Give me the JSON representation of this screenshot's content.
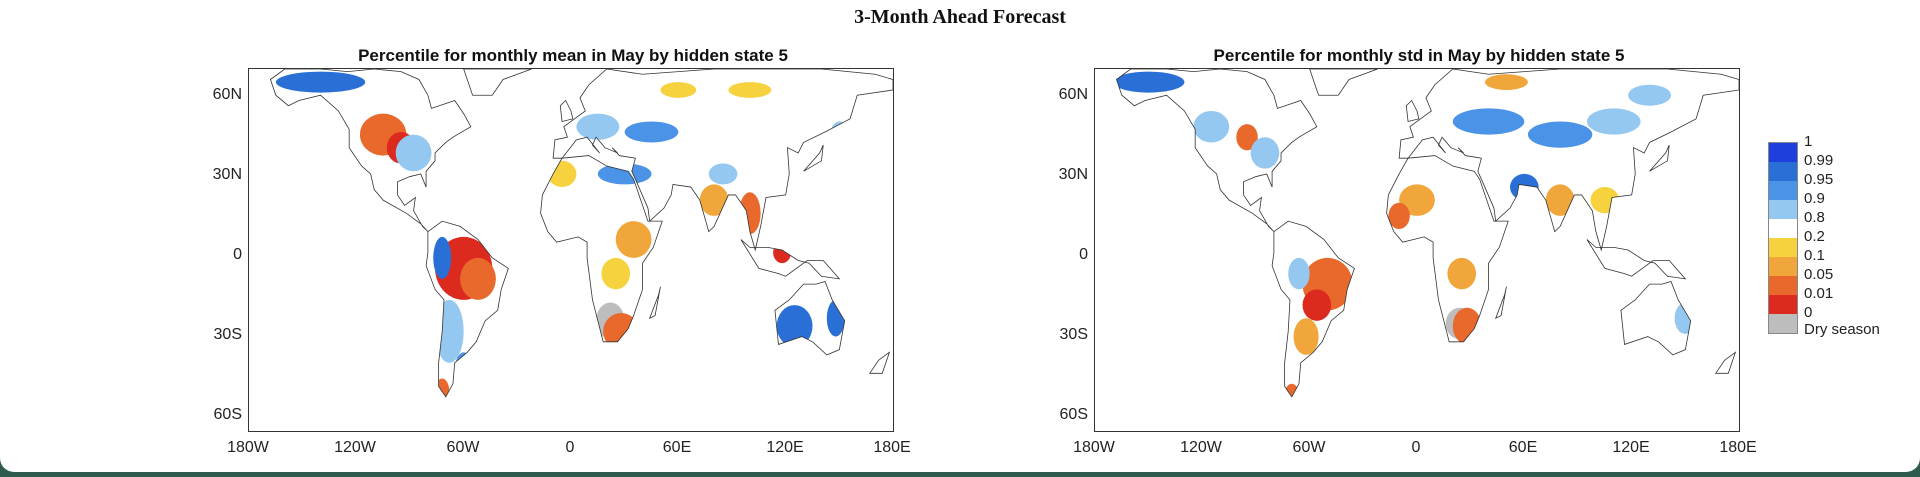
{
  "title": "3-Month Ahead Forecast",
  "panels": [
    {
      "id": "mean",
      "title": "Percentile for monthly mean in May by hidden state 5"
    },
    {
      "id": "std",
      "title": "Percentile for monthly std in May by hidden state 5"
    }
  ],
  "y_ticks": [
    "60N",
    "30N",
    "0",
    "30S",
    "60S"
  ],
  "x_ticks": [
    "180W",
    "120W",
    "60W",
    "0",
    "60E",
    "120E",
    "180E"
  ],
  "colorbar": {
    "labels": [
      "1",
      "0.99",
      "0.95",
      "0.9",
      "0.8",
      "0.2",
      "0.1",
      "0.05",
      "0.01",
      "0",
      "Dry season"
    ],
    "bins": [
      {
        "range": "0.99-1",
        "color": "#1f3fdc"
      },
      {
        "range": "0.95-0.99",
        "color": "#2a6fd6"
      },
      {
        "range": "0.9-0.95",
        "color": "#4b93e6"
      },
      {
        "range": "0.8-0.9",
        "color": "#94c8f0"
      },
      {
        "range": "0.2-0.8",
        "color": "#ffffff"
      },
      {
        "range": "0.1-0.2",
        "color": "#f6d23f"
      },
      {
        "range": "0.05-0.1",
        "color": "#f0a63b"
      },
      {
        "range": "0.01-0.05",
        "color": "#e8692b"
      },
      {
        "range": "0-0.01",
        "color": "#dd2a1f"
      },
      {
        "range": "Dry season",
        "color": "#bdbdbd"
      }
    ]
  },
  "colors": {
    "land_outline": "#333333",
    "high": "#2a6fd6",
    "low": "#e8692b",
    "dry": "#bdbdbd"
  }
}
